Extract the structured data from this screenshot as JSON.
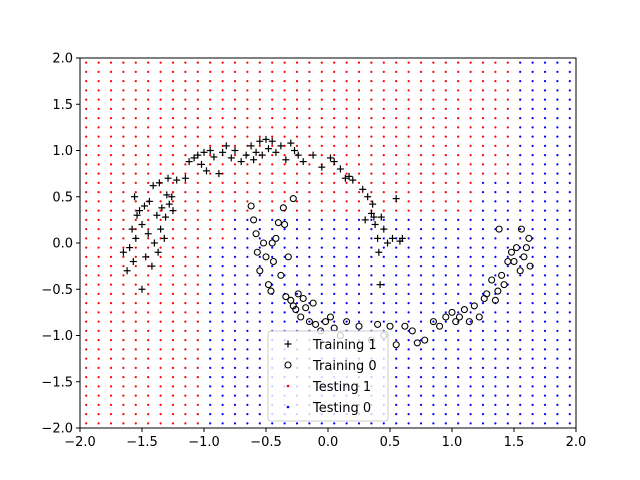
{
  "chart_data": {
    "type": "scatter",
    "title": "",
    "xlabel": "",
    "ylabel": "",
    "xlim": [
      -2.0,
      2.0
    ],
    "ylim": [
      -2.0,
      2.0
    ],
    "xticks": [
      "−2.0",
      "−1.5",
      "−1.0",
      "−0.5",
      "0.0",
      "0.5",
      "1.0",
      "1.5",
      "2.0"
    ],
    "xtick_values": [
      -2.0,
      -1.5,
      -1.0,
      -0.5,
      0.0,
      0.5,
      1.0,
      1.5,
      2.0
    ],
    "yticks": [
      "−2.0",
      "−1.5",
      "−1.0",
      "−0.5",
      "0.0",
      "0.5",
      "1.0",
      "1.5",
      "2.0"
    ],
    "ytick_values": [
      -2.0,
      -1.5,
      -1.0,
      -0.5,
      0.0,
      0.5,
      1.0,
      1.5,
      2.0
    ],
    "grid": false,
    "legend_position": "lower-center",
    "legend": [
      {
        "label": "Training 1",
        "marker": "plus",
        "color": "#000000"
      },
      {
        "label": "Training 0",
        "marker": "circle",
        "color": "#000000"
      },
      {
        "label": "Testing 1",
        "marker": "dot",
        "color": "#ff0000"
      },
      {
        "label": "Testing 0",
        "marker": "dot",
        "color": "#0000ff"
      }
    ],
    "testing_grid": {
      "x_start": -1.95,
      "x_step": 0.1,
      "x_count": 40,
      "y_start": -1.95,
      "y_step": 0.1,
      "y_count": 40,
      "description_boundary": "columns with x below boundary are Testing 1 (red), otherwise Testing 0 (blue)",
      "boundary_x_by_row": [
        {
          "y_max": 0.0,
          "x": -1.0
        },
        {
          "y_max": 0.35,
          "x": -0.8
        },
        {
          "y_max": 0.7,
          "x": 1.2
        },
        {
          "y_max": 2.0,
          "x": 1.5
        }
      ],
      "colors": {
        "one": "#ff0000",
        "zero": "#0000ff"
      }
    },
    "series": [
      {
        "name": "Training 1",
        "marker": "plus",
        "color": "#000000",
        "points": [
          [
            -1.65,
            -0.1
          ],
          [
            -1.62,
            -0.3
          ],
          [
            -1.6,
            -0.05
          ],
          [
            -1.58,
            0.15
          ],
          [
            -1.57,
            -0.2
          ],
          [
            -1.56,
            0.5
          ],
          [
            -1.55,
            0.05
          ],
          [
            -1.54,
            0.3
          ],
          [
            -1.52,
            0.35
          ],
          [
            -1.5,
            -0.5
          ],
          [
            -1.5,
            0.2
          ],
          [
            -1.48,
            0.4
          ],
          [
            -1.47,
            -0.15
          ],
          [
            -1.45,
            0.1
          ],
          [
            -1.44,
            0.45
          ],
          [
            -1.42,
            -0.25
          ],
          [
            -1.41,
            0.62
          ],
          [
            -1.4,
            0.0
          ],
          [
            -1.38,
            0.3
          ],
          [
            -1.37,
            -0.1
          ],
          [
            -1.36,
            0.65
          ],
          [
            -1.35,
            0.15
          ],
          [
            -1.34,
            0.38
          ],
          [
            -1.32,
            0.05
          ],
          [
            -1.31,
            0.28
          ],
          [
            -1.3,
            0.52
          ],
          [
            -1.29,
            0.7
          ],
          [
            -1.28,
            0.42
          ],
          [
            -1.26,
            0.5
          ],
          [
            -1.25,
            0.35
          ],
          [
            -1.22,
            0.68
          ],
          [
            -1.15,
            0.7
          ],
          [
            -1.12,
            0.88
          ],
          [
            -1.08,
            0.92
          ],
          [
            -1.05,
            0.95
          ],
          [
            -1.02,
            0.85
          ],
          [
            -1.0,
            0.98
          ],
          [
            -0.98,
            0.78
          ],
          [
            -0.95,
            1.0
          ],
          [
            -0.92,
            0.93
          ],
          [
            -0.88,
            0.75
          ],
          [
            -0.85,
            0.98
          ],
          [
            -0.82,
            1.05
          ],
          [
            -0.78,
            0.92
          ],
          [
            -0.75,
            1.0
          ],
          [
            -0.7,
            0.88
          ],
          [
            -0.66,
            0.95
          ],
          [
            -0.62,
            1.05
          ],
          [
            -0.6,
            0.9
          ],
          [
            -0.58,
            0.98
          ],
          [
            -0.55,
            1.1
          ],
          [
            -0.53,
            0.95
          ],
          [
            -0.5,
            1.12
          ],
          [
            -0.48,
            1.02
          ],
          [
            -0.45,
            1.1
          ],
          [
            -0.42,
            0.98
          ],
          [
            -0.38,
            1.05
          ],
          [
            -0.34,
            0.9
          ],
          [
            -0.3,
            1.08
          ],
          [
            -0.27,
            1.0
          ],
          [
            -0.24,
            0.95
          ],
          [
            -0.2,
            0.88
          ],
          [
            -0.12,
            0.95
          ],
          [
            -0.05,
            0.82
          ],
          [
            0.02,
            0.92
          ],
          [
            0.05,
            0.88
          ],
          [
            0.1,
            0.8
          ],
          [
            0.14,
            0.7
          ],
          [
            0.17,
            0.72
          ],
          [
            0.2,
            0.68
          ],
          [
            0.28,
            0.58
          ],
          [
            0.32,
            0.5
          ],
          [
            0.35,
            0.32
          ],
          [
            0.37,
            0.28
          ],
          [
            0.38,
            0.2
          ],
          [
            0.4,
            0.05
          ],
          [
            0.41,
            -0.1
          ],
          [
            0.42,
            -0.45
          ],
          [
            0.43,
            0.28
          ],
          [
            0.45,
            0.15
          ],
          [
            0.48,
            0.0
          ],
          [
            0.52,
            0.05
          ],
          [
            0.55,
            0.48
          ],
          [
            0.58,
            0.02
          ],
          [
            0.6,
            0.05
          ],
          [
            0.36,
            0.42
          ],
          [
            0.3,
            0.25
          ]
        ]
      },
      {
        "name": "Training 0",
        "marker": "circle",
        "color": "#000000",
        "points": [
          [
            -0.62,
            0.4
          ],
          [
            -0.6,
            0.25
          ],
          [
            -0.58,
            0.1
          ],
          [
            -0.57,
            -0.1
          ],
          [
            -0.55,
            -0.3
          ],
          [
            -0.52,
            0.0
          ],
          [
            -0.5,
            -0.15
          ],
          [
            -0.48,
            -0.45
          ],
          [
            -0.46,
            -0.52
          ],
          [
            -0.44,
            -0.2
          ],
          [
            -0.42,
            0.05
          ],
          [
            -0.4,
            0.22
          ],
          [
            -0.38,
            -0.35
          ],
          [
            -0.36,
            0.38
          ],
          [
            -0.34,
            -0.58
          ],
          [
            -0.32,
            -0.15
          ],
          [
            -0.3,
            -0.62
          ],
          [
            -0.28,
            -0.68
          ],
          [
            -0.26,
            -0.72
          ],
          [
            -0.24,
            -0.55
          ],
          [
            -0.22,
            -0.8
          ],
          [
            -0.2,
            -0.6
          ],
          [
            -0.18,
            -0.7
          ],
          [
            -0.15,
            -0.85
          ],
          [
            -0.12,
            -0.65
          ],
          [
            -0.1,
            -0.88
          ],
          [
            -0.06,
            -0.95
          ],
          [
            -0.02,
            -0.85
          ],
          [
            0.02,
            -0.8
          ],
          [
            0.05,
            -0.92
          ],
          [
            0.1,
            -1.0
          ],
          [
            0.15,
            -0.85
          ],
          [
            0.25,
            -0.9
          ],
          [
            0.35,
            -1.05
          ],
          [
            0.4,
            -0.88
          ],
          [
            0.45,
            -1.0
          ],
          [
            0.5,
            -0.9
          ],
          [
            0.55,
            -1.1
          ],
          [
            0.62,
            -0.9
          ],
          [
            0.68,
            -0.95
          ],
          [
            0.72,
            -1.08
          ],
          [
            0.78,
            -1.05
          ],
          [
            0.85,
            -0.85
          ],
          [
            0.9,
            -0.9
          ],
          [
            0.95,
            -0.8
          ],
          [
            1.0,
            -0.75
          ],
          [
            1.03,
            -0.85
          ],
          [
            1.06,
            -0.8
          ],
          [
            1.1,
            -0.72
          ],
          [
            1.14,
            -0.85
          ],
          [
            1.18,
            -0.68
          ],
          [
            1.22,
            -0.8
          ],
          [
            1.26,
            -0.6
          ],
          [
            1.28,
            -0.55
          ],
          [
            1.32,
            -0.4
          ],
          [
            1.35,
            -0.62
          ],
          [
            1.37,
            -0.52
          ],
          [
            1.4,
            -0.35
          ],
          [
            1.42,
            -0.45
          ],
          [
            1.45,
            -0.2
          ],
          [
            1.48,
            -0.1
          ],
          [
            1.5,
            -0.2
          ],
          [
            1.52,
            -0.05
          ],
          [
            1.55,
            -0.3
          ],
          [
            1.56,
            0.15
          ],
          [
            1.58,
            -0.15
          ],
          [
            1.6,
            -0.05
          ],
          [
            1.62,
            0.05
          ],
          [
            1.63,
            -0.25
          ],
          [
            1.38,
            0.15
          ],
          [
            -0.35,
            0.2
          ],
          [
            -0.28,
            0.48
          ],
          [
            -0.45,
            0.0
          ]
        ]
      }
    ]
  }
}
